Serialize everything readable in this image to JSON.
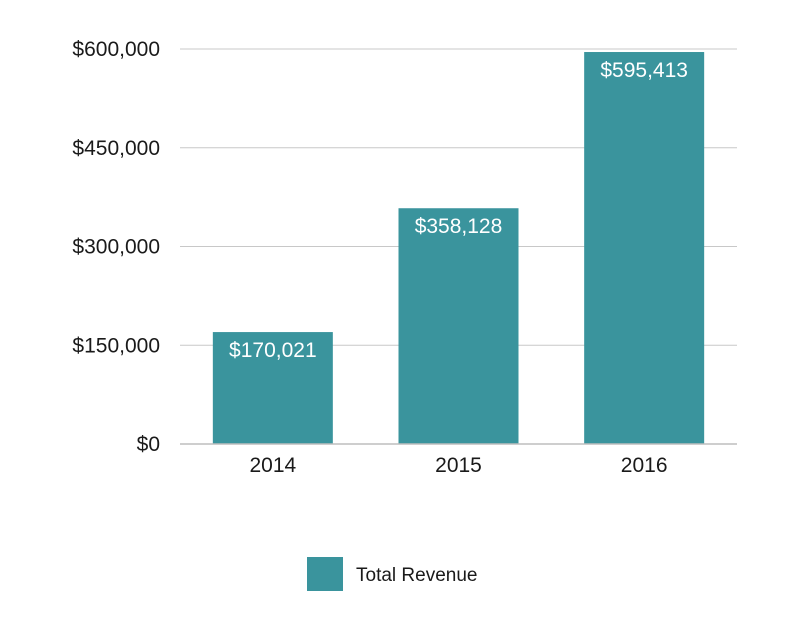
{
  "chart_data": {
    "type": "bar",
    "categories": [
      "2014",
      "2015",
      "2016"
    ],
    "series": [
      {
        "name": "Total Revenue",
        "values": [
          170021,
          358128,
          595413
        ],
        "value_labels": [
          "$170,021",
          "$358,128",
          "$595,413"
        ],
        "color": "#3a949d"
      }
    ],
    "y_ticks": [
      0,
      150000,
      300000,
      450000,
      600000
    ],
    "y_tick_labels": [
      "$0",
      "$150,000",
      "$300,000",
      "$450,000",
      "$600,000"
    ],
    "ylim": [
      0,
      600000
    ],
    "title": "",
    "xlabel": "",
    "ylabel": "",
    "grid": true,
    "legend_position": "bottom-center",
    "colors": {
      "bar": "#3a949d",
      "grid": "#c8c8c8",
      "axis": "#bdbdbd",
      "text": "#1a1a1a",
      "bar_label": "#ffffff"
    }
  }
}
